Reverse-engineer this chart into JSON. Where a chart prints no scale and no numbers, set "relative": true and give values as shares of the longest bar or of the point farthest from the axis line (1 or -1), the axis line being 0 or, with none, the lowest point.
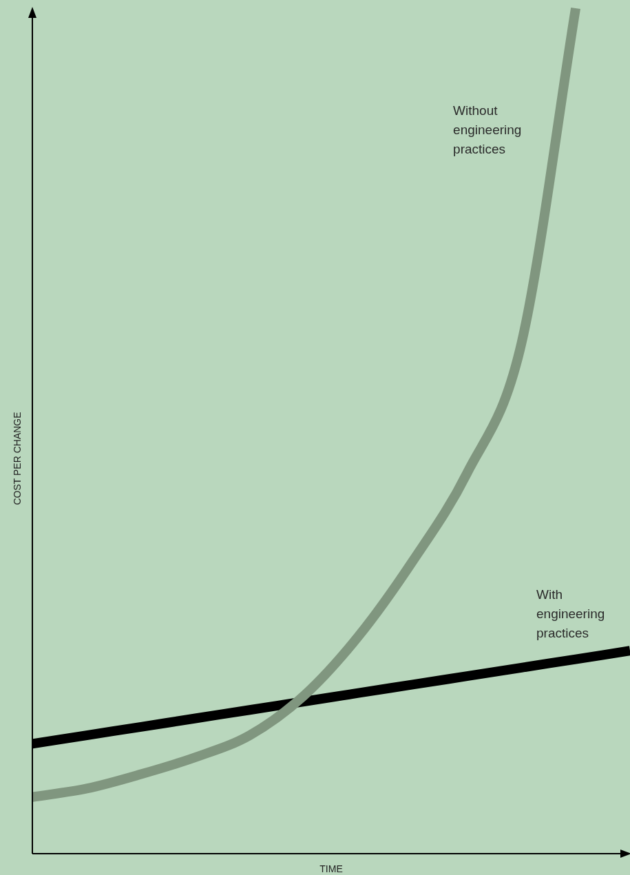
{
  "chart_data": {
    "type": "line",
    "relative": true,
    "xlabel": "TIME",
    "ylabel": "COST PER CHANGE",
    "categories": [
      null,
      null,
      null,
      null,
      null,
      null,
      null,
      null,
      null,
      null,
      null,
      null
    ],
    "series": [
      {
        "name": "Without engineering practices",
        "color": "#80967f",
        "values": [
          0.067,
          0.077,
          0.094,
          0.114,
          0.14,
          0.187,
          0.257,
          0.346,
          0.45,
          0.603,
          1,
          null
        ]
      },
      {
        "name": "With engineering practices",
        "color": "#000000",
        "values": [
          0.13,
          0.14,
          0.15,
          0.16,
          0.17,
          0.18,
          0.19,
          0.2,
          0.21,
          0.22,
          0.23,
          0.24
        ]
      }
    ],
    "grid": false,
    "legend": false,
    "marker": "none",
    "line_style": "solid"
  }
}
